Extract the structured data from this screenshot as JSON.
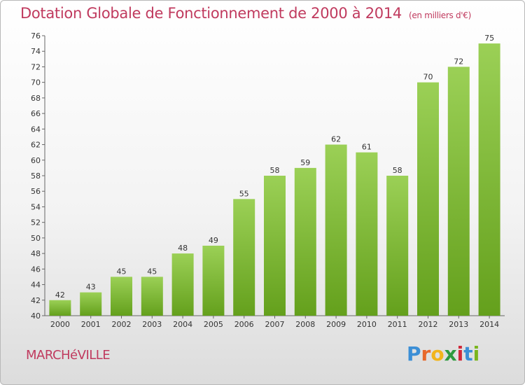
{
  "header": {
    "title": "Dotation Globale de Fonctionnement de 2000 à 2014",
    "subtitle": "(en milliers d'€)"
  },
  "commune": "MARCHéVILLE",
  "logo": {
    "letters": [
      "P",
      "r",
      "o",
      "x",
      "i",
      "t",
      "i"
    ],
    "colors": [
      "#3c8fd6",
      "#e8682a",
      "#f2b51c",
      "#2e9a3e",
      "#d1283a",
      "#3c8fd6",
      "#7ab51d"
    ]
  },
  "colors": {
    "bar_top": "#9bd056",
    "bar_bottom": "#64a01c",
    "accent": "#c03a5e"
  },
  "chart_data": {
    "type": "bar",
    "title": "Dotation Globale de Fonctionnement de 2000 à 2014",
    "subtitle": "(en milliers d'€)",
    "categories": [
      "2000",
      "2001",
      "2002",
      "2003",
      "2004",
      "2005",
      "2006",
      "2007",
      "2008",
      "2009",
      "2010",
      "2011",
      "2012",
      "2013",
      "2014"
    ],
    "values": [
      42,
      43,
      45,
      45,
      48,
      49,
      55,
      58,
      59,
      62,
      61,
      58,
      70,
      72,
      75
    ],
    "ylim": [
      40,
      76
    ],
    "yticks": [
      40,
      42,
      44,
      46,
      48,
      50,
      52,
      54,
      56,
      58,
      60,
      62,
      64,
      66,
      68,
      70,
      72,
      74,
      76
    ],
    "xlabel": "",
    "ylabel": "",
    "grid": false,
    "data_labels": true
  }
}
